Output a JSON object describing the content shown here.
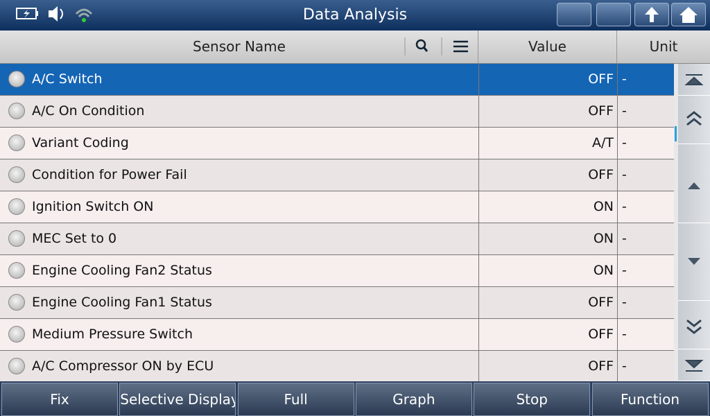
{
  "header": {
    "title": "Data Analysis"
  },
  "table": {
    "columns": [
      "Sensor Name",
      "Value",
      "Unit"
    ],
    "rows": [
      [
        "A/C Switch",
        "OFF",
        "-"
      ],
      [
        "A/C On Condition",
        "OFF",
        "-"
      ],
      [
        "Variant Coding",
        "A/T",
        "-"
      ],
      [
        "Condition for Power Fail",
        "OFF",
        "-"
      ],
      [
        "Ignition Switch ON",
        "ON",
        "-"
      ],
      [
        "MEC Set to 0",
        "ON",
        "-"
      ],
      [
        "Engine Cooling Fan2 Status",
        "ON",
        "-"
      ],
      [
        "Engine Cooling Fan1 Status",
        "OFF",
        "-"
      ],
      [
        "Medium Pressure Switch",
        "OFF",
        "-"
      ],
      [
        "A/C Compressor ON by ECU",
        "OFF",
        "-"
      ]
    ]
  },
  "buttons": [
    "Fix",
    "Selective Display",
    "Full",
    "Graph",
    "Stop",
    "Function"
  ]
}
